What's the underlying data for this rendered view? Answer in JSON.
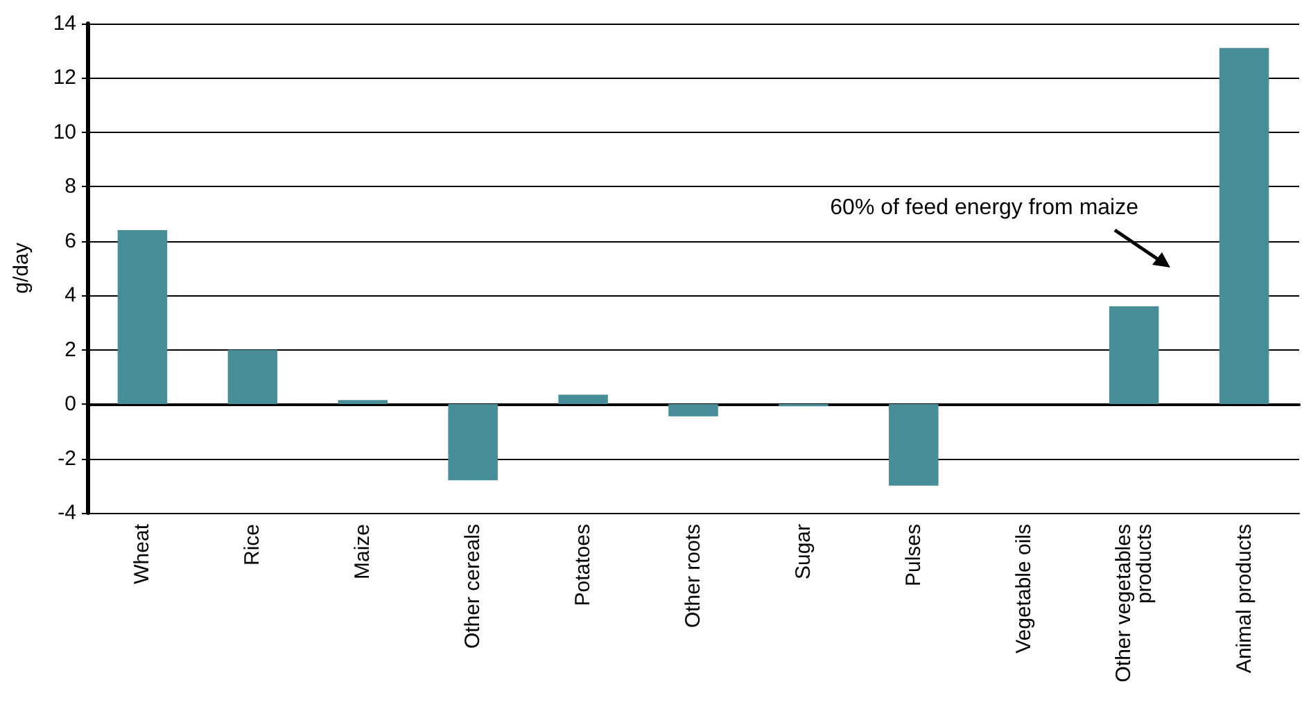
{
  "chart_data": {
    "type": "bar",
    "ylabel": "g/day",
    "categories": [
      "Wheat",
      "Rice",
      "Maize",
      "Other cereals",
      "Potatoes",
      "Other roots",
      "Sugar",
      "Pulses",
      "Vegetable oils",
      "Other vegetables products",
      "Animal products"
    ],
    "values": [
      6.4,
      2.0,
      0.15,
      -2.8,
      0.35,
      -0.45,
      -0.08,
      -3.0,
      0,
      3.6,
      13.1
    ],
    "color": "#478e99",
    "ylim": [
      -4,
      14
    ],
    "yticks": [
      -4,
      -2,
      0,
      2,
      4,
      6,
      8,
      10,
      12,
      14
    ],
    "grid": "y",
    "annotations": [
      "60% of feed energy from maize"
    ]
  }
}
